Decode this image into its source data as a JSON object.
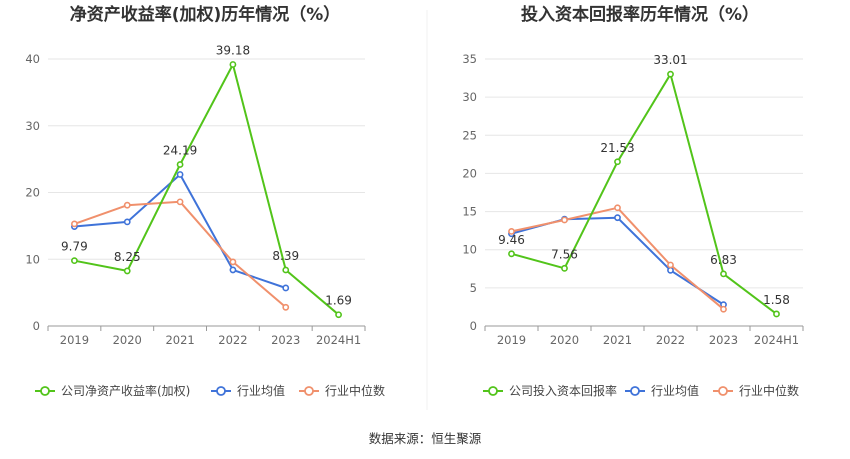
{
  "source": "数据来源：恒生聚源",
  "colors": {
    "company": "#52c41a",
    "avg": "#3f73d9",
    "median": "#f0906c",
    "grid": "#e6e6e6",
    "axis": "#999999"
  },
  "chart_data": [
    {
      "type": "line",
      "title": "净资产收益率(加权)历年情况（%）",
      "categories": [
        "2019",
        "2020",
        "2021",
        "2022",
        "2023",
        "2024H1"
      ],
      "ylim": [
        0,
        40
      ],
      "yticks": [
        0,
        10,
        20,
        30,
        40
      ],
      "grid": true,
      "legend_position": "bottom",
      "series": [
        {
          "name": "公司净资产收益率(加权)",
          "key": "company",
          "values": [
            9.79,
            8.25,
            24.19,
            39.18,
            8.39,
            1.69
          ],
          "labels": [
            "9.79",
            "8.25",
            "24.19",
            "39.18",
            "8.39",
            "1.69"
          ]
        },
        {
          "name": "行业均值",
          "key": "avg",
          "values": [
            14.9,
            15.6,
            22.7,
            8.4,
            5.7,
            null
          ]
        },
        {
          "name": "行业中位数",
          "key": "median",
          "values": [
            15.3,
            18.1,
            18.6,
            9.6,
            2.8,
            null
          ]
        }
      ]
    },
    {
      "type": "line",
      "title": "投入资本回报率历年情况（%）",
      "categories": [
        "2019",
        "2020",
        "2021",
        "2022",
        "2023",
        "2024H1"
      ],
      "ylim": [
        0,
        35
      ],
      "yticks": [
        0,
        5,
        10,
        15,
        20,
        25,
        30,
        35
      ],
      "grid": true,
      "legend_position": "bottom",
      "series": [
        {
          "name": "公司投入资本回报率",
          "key": "company",
          "values": [
            9.46,
            7.56,
            21.53,
            33.01,
            6.83,
            1.58
          ],
          "labels": [
            "9.46",
            "7.56",
            "21.53",
            "33.01",
            "6.83",
            "1.58"
          ]
        },
        {
          "name": "行业均值",
          "key": "avg",
          "values": [
            12.1,
            14.0,
            14.2,
            7.3,
            2.8,
            null
          ]
        },
        {
          "name": "行业中位数",
          "key": "median",
          "values": [
            12.4,
            13.9,
            15.5,
            8.0,
            2.2,
            null
          ]
        }
      ]
    }
  ]
}
